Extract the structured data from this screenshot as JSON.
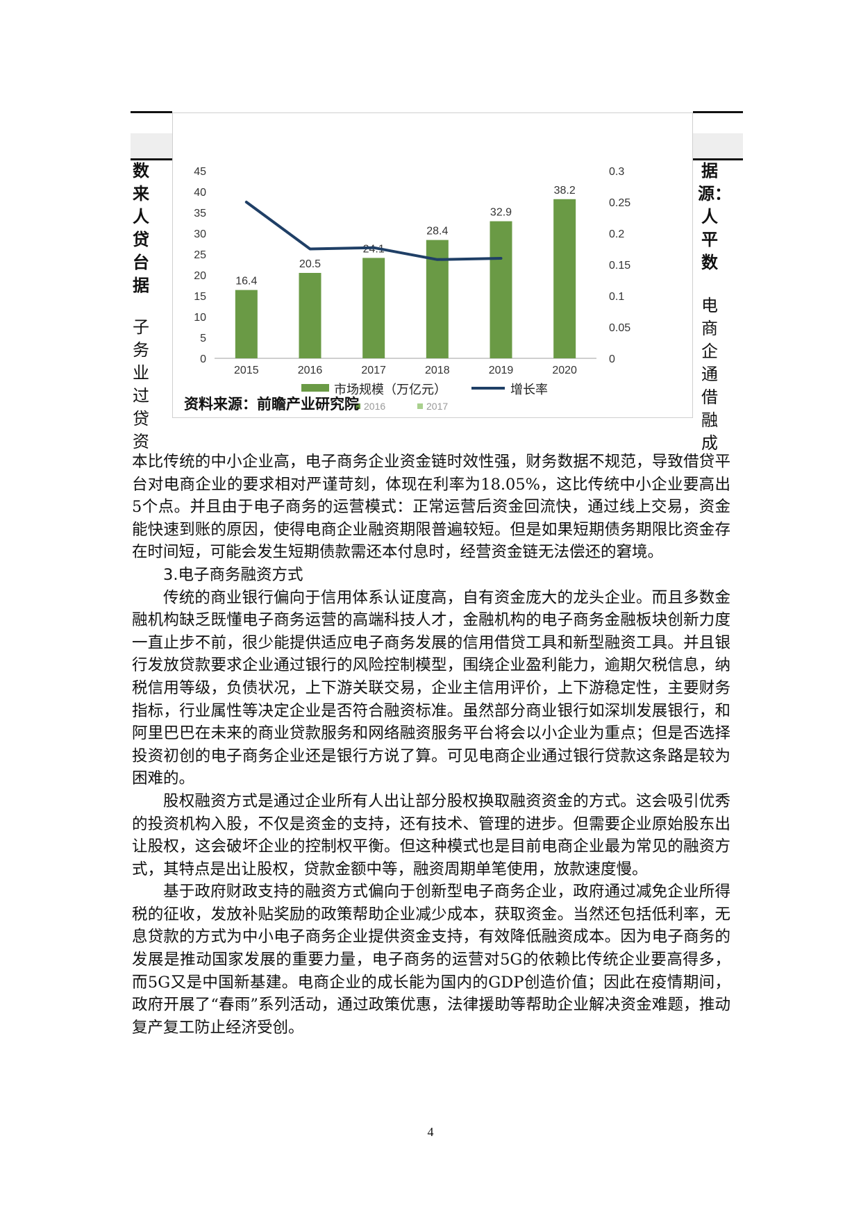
{
  "left_column_bold": "数来人贷台据",
  "left_column_text": "子务业过贷资",
  "right_column_bold": "据源：人平数",
  "right_column_text": "电商企通借融成",
  "chart_source": "资料来源：前瞻产业研究院",
  "overlap_legend": [
    "2016",
    "2017"
  ],
  "chart_data": {
    "type": "bar",
    "categories": [
      "2015",
      "2016",
      "2017",
      "2018",
      "2019",
      "2020"
    ],
    "series": [
      {
        "name": "市场规模（万亿元）",
        "type": "bar",
        "axis": "left",
        "color": "#6a9a45",
        "values": [
          16.4,
          20.5,
          24.1,
          28.4,
          32.9,
          38.2
        ]
      },
      {
        "name": "增长率",
        "type": "line",
        "axis": "right",
        "color": "#1f3f66",
        "values": [
          0.25,
          0.175,
          0.177,
          0.158,
          0.16,
          null
        ]
      }
    ],
    "data_labels": [
      "16.4",
      "20.5",
      "24.1",
      "28.4",
      "32.9",
      "38.2"
    ],
    "y_left": {
      "min": 0,
      "max": 45,
      "ticks": [
        "0",
        "5",
        "10",
        "15",
        "20",
        "25",
        "30",
        "35",
        "40",
        "45"
      ]
    },
    "y_right": {
      "min": 0,
      "max": 0.3,
      "ticks": [
        "0",
        "0.05",
        "0.1",
        "0.15",
        "0.2",
        "0.25",
        "0.3"
      ]
    },
    "grid": false,
    "legend_position": "bottom"
  },
  "paragraphs": [
    {
      "style": "plain",
      "text": "本比传统的中小企业高，电子商务企业资金链时效性强，财务数据不规范，导致借贷平台对电商企业的要求相对严谨苛刻，体现在利率为18.05%，这比传统中小企业要高出5个点。并且由于电子商务的运营模式：正常运营后资金回流快，通过线上交易，资金能快速到账的原因，使得电商企业融资期限普遍较短。但是如果短期债务期限比资金存在时间短，可能会发生短期债款需还本付息时，经营资金链无法偿还的窘境。"
    },
    {
      "style": "heading",
      "text": "3.电子商务融资方式"
    },
    {
      "style": "indent",
      "text": "传统的商业银行偏向于信用体系认证度高，自有资金庞大的龙头企业。而且多数金融机构缺乏既懂电子商务运营的高端科技人才，金融机构的电子商务金融板块创新力度一直止步不前，很少能提供适应电子商务发展的信用借贷工具和新型融资工具。并且银行发放贷款要求企业通过银行的风险控制模型，围绕企业盈利能力，逾期欠税信息，纳税信用等级，负债状况，上下游关联交易，企业主信用评价，上下游稳定性，主要财务指标，行业属性等决定企业是否符合融资标准。虽然部分商业银行如深圳发展银行，和阿里巴巴在未来的商业贷款服务和网络融资服务平台将会以小企业为重点；但是否选择投资初创的电子商务企业还是银行方说了算。可见电商企业通过银行贷款这条路是较为困难的。"
    },
    {
      "style": "indent",
      "text": "股权融资方式是通过企业所有人出让部分股权换取融资资金的方式。这会吸引优秀的投资机构入股，不仅是资金的支持，还有技术、管理的进步。但需要企业原始股东出让股权，这会破坏企业的控制权平衡。但这种模式也是目前电商企业最为常见的融资方式，其特点是出让股权，贷款金额中等，融资周期单笔使用，放款速度慢。"
    },
    {
      "style": "indent",
      "text": "基于政府财政支持的融资方式偏向于创新型电子商务企业，政府通过减免企业所得税的征收，发放补贴奖励的政策帮助企业减少成本，获取资金。当然还包括低利率，无息贷款的方式为中小电子商务企业提供资金支持，有效降低融资成本。因为电子商务的发展是推动国家发展的重要力量，电子商务的运营对5G的依赖比传统企业要高得多，而5G又是中国新基建。电商企业的成长能为国内的GDP创造价值；因此在疫情期间，政府开展了“春雨”系列活动，通过政策优惠，法律援助等帮助企业解决资金难题，推动复产复工防止经济受创。"
    }
  ],
  "page_number": "4"
}
